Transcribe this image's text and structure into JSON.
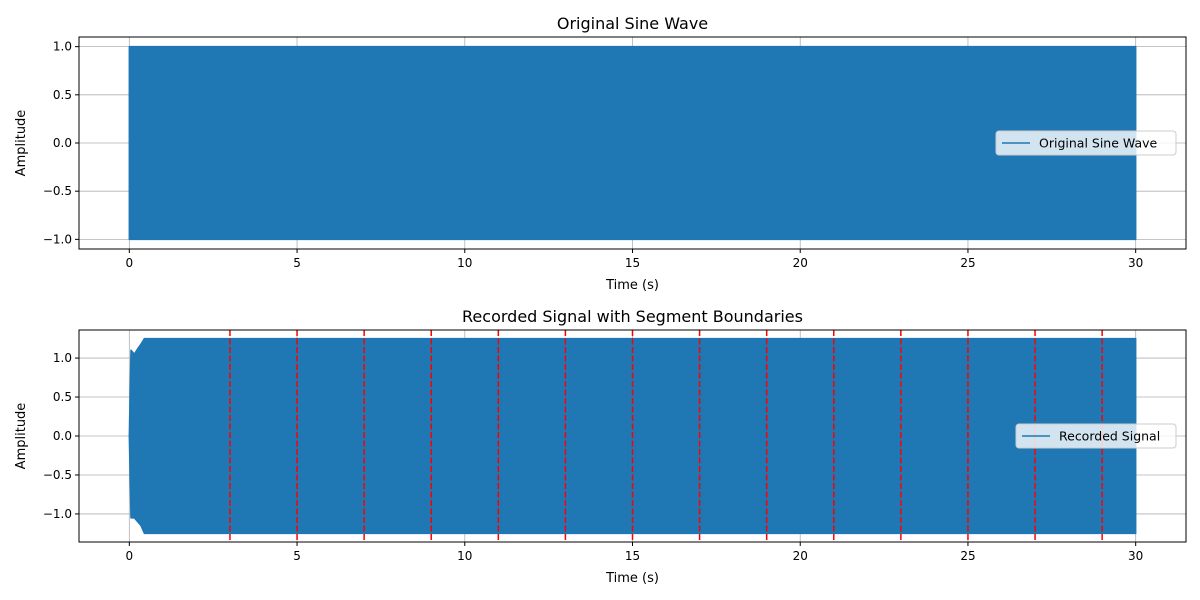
{
  "chart_data": [
    {
      "type": "line",
      "title": "Original Sine Wave",
      "xlabel": "Time (s)",
      "ylabel": "Amplitude",
      "xlim": [
        -1.5,
        31.5
      ],
      "ylim": [
        -1.1,
        1.1
      ],
      "xticks": [
        0,
        5,
        10,
        15,
        20,
        25,
        30
      ],
      "xtick_labels": [
        "0",
        "5",
        "10",
        "15",
        "20",
        "25",
        "30"
      ],
      "yticks": [
        -1.0,
        -0.5,
        0.0,
        0.5,
        1.0
      ],
      "ytick_labels": [
        "−1.0",
        "−0.5",
        "0.0",
        "0.5",
        "1.0"
      ],
      "grid": true,
      "legend_position": "center-right",
      "series": [
        {
          "name": "Original Sine Wave",
          "color": "#1f77b4",
          "x_start": 0,
          "x_end": 30,
          "envelope": [
            {
              "x": 0,
              "y_min": -1.0,
              "y_max": 1.0
            },
            {
              "x": 30,
              "y_min": -1.0,
              "y_max": 1.0
            }
          ]
        }
      ]
    },
    {
      "type": "line",
      "title": "Recorded Signal with Segment Boundaries",
      "xlabel": "Time (s)",
      "ylabel": "Amplitude",
      "xlim": [
        -1.5,
        31.5
      ],
      "ylim": [
        -1.36,
        1.36
      ],
      "xticks": [
        0,
        5,
        10,
        15,
        20,
        25,
        30
      ],
      "xtick_labels": [
        "0",
        "5",
        "10",
        "15",
        "20",
        "25",
        "30"
      ],
      "yticks": [
        -1.0,
        -0.5,
        0.0,
        0.5,
        1.0
      ],
      "ytick_labels": [
        "−1.0",
        "−0.5",
        "0.0",
        "0.5",
        "1.0"
      ],
      "grid": true,
      "legend_position": "center-right",
      "series": [
        {
          "name": "Recorded Signal",
          "color": "#1f77b4",
          "x_start": 0,
          "x_end": 30,
          "envelope": [
            {
              "x": 0.0,
              "y_min": 0.0,
              "y_max": 0.0
            },
            {
              "x": 0.05,
              "y_min": -1.05,
              "y_max": 1.1
            },
            {
              "x": 0.15,
              "y_min": -1.05,
              "y_max": 1.05
            },
            {
              "x": 0.25,
              "y_min": -1.1,
              "y_max": 1.12
            },
            {
              "x": 0.35,
              "y_min": -1.15,
              "y_max": 1.18
            },
            {
              "x": 0.45,
              "y_min": -1.25,
              "y_max": 1.25
            },
            {
              "x": 30,
              "y_min": -1.25,
              "y_max": 1.25
            }
          ]
        }
      ],
      "boundaries": {
        "color": "#ff0000",
        "style": "dashed",
        "x": [
          3,
          5,
          7,
          9,
          11,
          13,
          15,
          17,
          19,
          21,
          23,
          25,
          27,
          29
        ]
      }
    }
  ]
}
